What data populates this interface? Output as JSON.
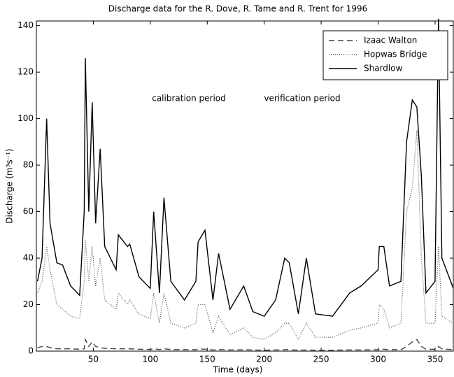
{
  "chart_data": {
    "type": "line",
    "title": "Discharge data for the R. Dove, R. Tame and R. Trent for 1996",
    "xlabel": "Time (days)",
    "ylabel": "Discharge (m³s⁻¹)",
    "annotations": [
      "calibration period",
      "verification period"
    ],
    "x": [
      1,
      5,
      9,
      12,
      18,
      23,
      30,
      38,
      42,
      43,
      46,
      49,
      52,
      56,
      60,
      70,
      72,
      80,
      82,
      90,
      100,
      103,
      108,
      112,
      118,
      130,
      140,
      142,
      148,
      155,
      160,
      170,
      182,
      190,
      200,
      210,
      218,
      222,
      230,
      237,
      245,
      260,
      275,
      285,
      300,
      301,
      305,
      310,
      320,
      325,
      330,
      334,
      338,
      342,
      350,
      353,
      356,
      366
    ],
    "series": [
      {
        "name": "Izaac Walton",
        "color": "#444444",
        "dash": "8,5",
        "values": [
          1.5,
          2,
          2,
          1.5,
          1,
          1,
          1,
          0.8,
          1,
          5,
          2,
          4,
          2,
          1.5,
          1.2,
          1,
          1,
          1,
          1,
          0.8,
          0.7,
          1,
          0.7,
          1,
          0.7,
          0.6,
          0.6,
          1,
          0.8,
          0.5,
          0.7,
          0.5,
          0.6,
          0.5,
          0.4,
          0.5,
          0.6,
          0.6,
          0.4,
          0.5,
          0.4,
          0.4,
          0.5,
          0.5,
          0.6,
          0.8,
          0.8,
          0.6,
          0.6,
          2,
          4,
          5,
          2,
          0.8,
          0.8,
          2,
          1,
          0.6
        ]
      },
      {
        "name": "Hopwas Bridge",
        "color": "#555555",
        "dash": "1,2",
        "values": [
          25,
          30,
          45,
          35,
          20,
          18,
          15,
          14,
          30,
          48,
          30,
          45,
          28,
          40,
          22,
          18,
          25,
          20,
          22,
          16,
          14,
          25,
          12,
          25,
          12,
          10,
          12,
          20,
          20,
          8,
          15,
          7,
          10,
          6,
          5,
          8,
          12,
          12,
          5,
          12,
          6,
          6,
          9,
          10,
          12,
          20,
          18,
          10,
          12,
          60,
          70,
          95,
          40,
          12,
          12,
          45,
          15,
          12
        ]
      },
      {
        "name": "Shardlow",
        "color": "#000000",
        "dash": "none",
        "values": [
          30,
          40,
          100,
          55,
          38,
          37,
          28,
          24,
          60,
          126,
          60,
          107,
          55,
          87,
          45,
          35,
          50,
          45,
          46,
          32,
          27,
          60,
          25,
          66,
          30,
          22,
          30,
          47,
          52,
          22,
          42,
          18,
          28,
          17,
          15,
          22,
          40,
          38,
          16,
          40,
          16,
          15,
          25,
          28,
          35,
          45,
          45,
          28,
          30,
          90,
          108,
          105,
          75,
          25,
          30,
          143,
          40,
          27
        ]
      }
    ],
    "xlim": [
      0,
      366
    ],
    "xticks": [
      50,
      100,
      150,
      200,
      250,
      300,
      350
    ],
    "ylim": [
      0,
      142
    ],
    "yticks": [
      0,
      20,
      40,
      60,
      80,
      100,
      120,
      140
    ],
    "grid": false,
    "legend": "upper-right"
  }
}
